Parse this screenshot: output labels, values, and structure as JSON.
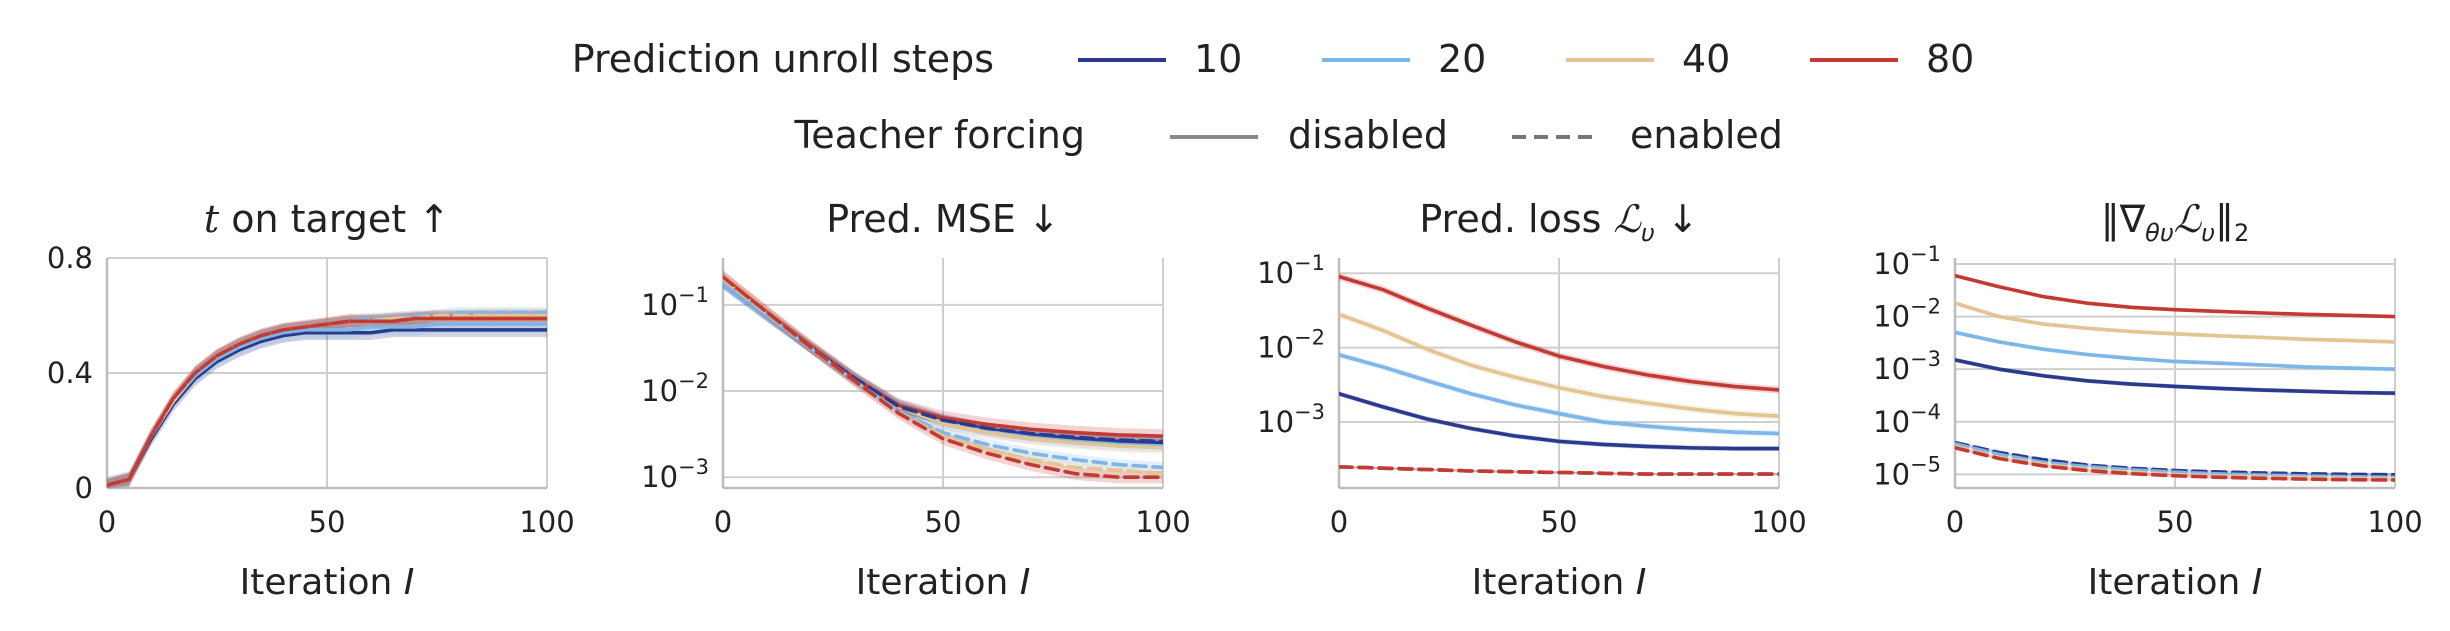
{
  "legend": {
    "steps_title": "Prediction unroll steps",
    "steps": [
      {
        "label": "10",
        "color": "#2b3a8c"
      },
      {
        "label": "20",
        "color": "#7eb6e8"
      },
      {
        "label": "40",
        "color": "#e3c594"
      },
      {
        "label": "80",
        "color": "#c23a33"
      }
    ],
    "tf_title": "Teacher forcing",
    "tf": [
      {
        "label": "disabled",
        "dash": "solid",
        "color": "#888888"
      },
      {
        "label": "enabled",
        "dash": "dashed",
        "color": "#777777"
      }
    ]
  },
  "chart_data": [
    {
      "type": "line",
      "title_parts": {
        "italic": "t",
        "rest": " on target ↑"
      },
      "xlabel_parts": {
        "text": "Iteration ",
        "italic": "I"
      },
      "xlim": [
        0,
        100
      ],
      "xticks": [
        0,
        50,
        100
      ],
      "yscale": "linear",
      "ylim": [
        0,
        0.8
      ],
      "yticks": [
        {
          "v": 0,
          "label": "0"
        },
        {
          "v": 0.4,
          "label": "0.4"
        },
        {
          "v": 0.8,
          "label": "0.8"
        }
      ],
      "grid": true,
      "x": [
        0,
        5,
        10,
        15,
        20,
        25,
        30,
        35,
        40,
        45,
        50,
        55,
        60,
        65,
        70,
        75,
        80,
        85,
        90,
        95,
        100
      ],
      "series": [
        {
          "steps": "10",
          "tf": "disabled",
          "values": [
            0.01,
            0.03,
            0.17,
            0.29,
            0.38,
            0.44,
            0.48,
            0.51,
            0.53,
            0.54,
            0.54,
            0.54,
            0.54,
            0.55,
            0.55,
            0.55,
            0.55,
            0.55,
            0.55,
            0.55,
            0.55
          ],
          "band": 0.025
        },
        {
          "steps": "20",
          "tf": "disabled",
          "values": [
            0.01,
            0.03,
            0.18,
            0.3,
            0.39,
            0.45,
            0.49,
            0.52,
            0.54,
            0.55,
            0.55,
            0.55,
            0.56,
            0.56,
            0.56,
            0.57,
            0.57,
            0.57,
            0.57,
            0.57,
            0.57
          ],
          "band": 0.03
        },
        {
          "steps": "40",
          "tf": "disabled",
          "values": [
            0.01,
            0.03,
            0.18,
            0.3,
            0.4,
            0.46,
            0.5,
            0.53,
            0.55,
            0.56,
            0.57,
            0.58,
            0.58,
            0.59,
            0.59,
            0.59,
            0.59,
            0.6,
            0.6,
            0.6,
            0.6
          ],
          "band": 0.025
        },
        {
          "steps": "80",
          "tf": "disabled",
          "values": [
            0.01,
            0.03,
            0.18,
            0.31,
            0.4,
            0.46,
            0.5,
            0.53,
            0.55,
            0.56,
            0.57,
            0.58,
            0.58,
            0.58,
            0.59,
            0.59,
            0.59,
            0.59,
            0.59,
            0.59,
            0.59
          ],
          "band": 0.025
        },
        {
          "steps": "10",
          "tf": "enabled",
          "values": [
            0.01,
            0.03,
            0.18,
            0.3,
            0.4,
            0.46,
            0.5,
            0.53,
            0.55,
            0.56,
            0.57,
            0.58,
            0.58,
            0.59,
            0.59,
            0.6,
            0.6,
            0.6,
            0.6,
            0.6,
            0.6
          ],
          "band": 0.02
        },
        {
          "steps": "20",
          "tf": "enabled",
          "values": [
            0.01,
            0.03,
            0.18,
            0.3,
            0.4,
            0.46,
            0.5,
            0.53,
            0.55,
            0.56,
            0.57,
            0.58,
            0.59,
            0.59,
            0.6,
            0.6,
            0.61,
            0.61,
            0.61,
            0.61,
            0.61
          ],
          "band": 0.02
        },
        {
          "steps": "40",
          "tf": "enabled",
          "values": [
            0.01,
            0.03,
            0.18,
            0.3,
            0.4,
            0.46,
            0.5,
            0.53,
            0.55,
            0.56,
            0.57,
            0.58,
            0.58,
            0.59,
            0.59,
            0.6,
            0.6,
            0.6,
            0.6,
            0.6,
            0.6
          ],
          "band": 0.02
        },
        {
          "steps": "80",
          "tf": "enabled",
          "values": [
            0.01,
            0.03,
            0.18,
            0.31,
            0.4,
            0.46,
            0.5,
            0.53,
            0.55,
            0.56,
            0.57,
            0.58,
            0.58,
            0.58,
            0.59,
            0.59,
            0.59,
            0.59,
            0.59,
            0.59,
            0.59
          ],
          "band": 0.02
        }
      ]
    },
    {
      "type": "line",
      "title_parts": {
        "text": "Pred. MSE ↓"
      },
      "xlabel_parts": {
        "text": "Iteration ",
        "italic": "I"
      },
      "xlim": [
        0,
        100
      ],
      "xticks": [
        0,
        50,
        100
      ],
      "yscale": "log",
      "ylim": [
        0.00075,
        0.35
      ],
      "yticks": [
        {
          "v": 0.001,
          "base": "10",
          "exp": "−3"
        },
        {
          "v": 0.01,
          "base": "10",
          "exp": "−2"
        },
        {
          "v": 0.1,
          "base": "10",
          "exp": "−1"
        }
      ],
      "grid": true,
      "x": [
        0,
        10,
        20,
        30,
        40,
        50,
        60,
        70,
        80,
        90,
        100
      ],
      "series": [
        {
          "steps": "10",
          "tf": "disabled",
          "values": [
            0.18,
            0.075,
            0.032,
            0.014,
            0.0068,
            0.0046,
            0.0036,
            0.0031,
            0.0028,
            0.0026,
            0.0025
          ],
          "band": 0.18
        },
        {
          "steps": "20",
          "tf": "disabled",
          "values": [
            0.18,
            0.075,
            0.032,
            0.014,
            0.0066,
            0.0043,
            0.0034,
            0.0029,
            0.0026,
            0.0024,
            0.0023
          ],
          "band": 0.18
        },
        {
          "steps": "40",
          "tf": "disabled",
          "values": [
            0.2,
            0.08,
            0.033,
            0.014,
            0.0066,
            0.0042,
            0.0033,
            0.0028,
            0.0025,
            0.0023,
            0.0022
          ],
          "band": 0.18
        },
        {
          "steps": "80",
          "tf": "disabled",
          "values": [
            0.21,
            0.082,
            0.033,
            0.014,
            0.0068,
            0.0049,
            0.0041,
            0.0036,
            0.0033,
            0.0031,
            0.003
          ],
          "band": 0.2
        },
        {
          "steps": "10",
          "tf": "enabled",
          "values": [
            0.18,
            0.075,
            0.032,
            0.014,
            0.0066,
            0.0046,
            0.0037,
            0.0032,
            0.0029,
            0.0027,
            0.0026
          ],
          "band": 0.15
        },
        {
          "steps": "20",
          "tf": "enabled",
          "values": [
            0.18,
            0.075,
            0.031,
            0.013,
            0.0058,
            0.0033,
            0.0024,
            0.0019,
            0.0016,
            0.0014,
            0.0013
          ],
          "band": 0.15
        },
        {
          "steps": "40",
          "tf": "enabled",
          "values": [
            0.2,
            0.08,
            0.032,
            0.013,
            0.0056,
            0.003,
            0.0021,
            0.0016,
            0.0013,
            0.0012,
            0.0011
          ],
          "band": 0.15
        },
        {
          "steps": "80",
          "tf": "enabled",
          "values": [
            0.21,
            0.082,
            0.032,
            0.013,
            0.0055,
            0.0028,
            0.0019,
            0.0014,
            0.0011,
            0.001,
            0.001
          ],
          "band": 0.18
        }
      ]
    },
    {
      "type": "line",
      "title_parts": {
        "text": "Pred. loss ",
        "math": "ℒ",
        "sub": "υ",
        "after": " ↓"
      },
      "xlabel_parts": {
        "text": "Iteration ",
        "italic": "I"
      },
      "xlim": [
        0,
        100
      ],
      "xticks": [
        0,
        50,
        100
      ],
      "yscale": "log",
      "ylim": [
        0.00013,
        0.16
      ],
      "yticks": [
        {
          "v": 0.001,
          "base": "10",
          "exp": "−3"
        },
        {
          "v": 0.01,
          "base": "10",
          "exp": "−2"
        },
        {
          "v": 0.1,
          "base": "10",
          "exp": "−1"
        }
      ],
      "grid": true,
      "x": [
        0,
        10,
        20,
        30,
        40,
        50,
        60,
        70,
        80,
        90,
        100
      ],
      "series": [
        {
          "steps": "10",
          "tf": "disabled",
          "values": [
            0.0024,
            0.0016,
            0.0011,
            0.00082,
            0.00065,
            0.00055,
            0.0005,
            0.00047,
            0.00045,
            0.00044,
            0.00044
          ],
          "band": 0.08
        },
        {
          "steps": "20",
          "tf": "disabled",
          "values": [
            0.008,
            0.0055,
            0.0036,
            0.0024,
            0.0017,
            0.0013,
            0.001,
            0.00088,
            0.00079,
            0.00073,
            0.0007
          ],
          "band": 0.1
        },
        {
          "steps": "40",
          "tf": "disabled",
          "values": [
            0.028,
            0.017,
            0.0095,
            0.0058,
            0.004,
            0.0029,
            0.0022,
            0.0018,
            0.0015,
            0.0013,
            0.0012
          ],
          "band": 0.12
        },
        {
          "steps": "80",
          "tf": "disabled",
          "values": [
            0.09,
            0.06,
            0.034,
            0.02,
            0.012,
            0.0077,
            0.0056,
            0.0043,
            0.0035,
            0.003,
            0.0027
          ],
          "band": 0.12
        },
        {
          "steps": "10",
          "tf": "enabled",
          "values": [
            0.00025,
            0.00024,
            0.00023,
            0.00022,
            0.000215,
            0.00021,
            0.000205,
            0.0002,
            0.0002,
            0.0002,
            0.0002
          ],
          "band": 0.03
        },
        {
          "steps": "20",
          "tf": "enabled",
          "values": [
            0.00025,
            0.00024,
            0.00023,
            0.00022,
            0.000215,
            0.00021,
            0.000205,
            0.0002,
            0.0002,
            0.0002,
            0.0002
          ],
          "band": 0.03
        },
        {
          "steps": "40",
          "tf": "enabled",
          "values": [
            0.00025,
            0.00024,
            0.00023,
            0.00022,
            0.000215,
            0.00021,
            0.000205,
            0.0002,
            0.0002,
            0.0002,
            0.0002
          ],
          "band": 0.03
        },
        {
          "steps": "80",
          "tf": "enabled",
          "values": [
            0.00025,
            0.00024,
            0.00023,
            0.00022,
            0.000215,
            0.00021,
            0.000205,
            0.0002,
            0.0002,
            0.0002,
            0.0002
          ],
          "band": 0.03
        }
      ]
    },
    {
      "type": "line",
      "title_parts": {
        "norm": "‖∇",
        "sub": "θυ",
        "math": "ℒ",
        "sub2": "υ",
        "close": "‖",
        "sub3": "2"
      },
      "xlabel_parts": {
        "text": "Iteration ",
        "italic": "I"
      },
      "xlim": [
        0,
        100
      ],
      "xticks": [
        0,
        50,
        100
      ],
      "yscale": "log",
      "ylim": [
        5.5e-06,
        0.13
      ],
      "yticks": [
        {
          "v": 1e-05,
          "base": "10",
          "exp": "−5"
        },
        {
          "v": 0.0001,
          "base": "10",
          "exp": "−4"
        },
        {
          "v": 0.001,
          "base": "10",
          "exp": "−3"
        },
        {
          "v": 0.01,
          "base": "10",
          "exp": "−2"
        },
        {
          "v": 0.1,
          "base": "10",
          "exp": "−1"
        }
      ],
      "grid": true,
      "x": [
        0,
        10,
        20,
        30,
        40,
        50,
        60,
        70,
        80,
        90,
        100
      ],
      "series": [
        {
          "steps": "10",
          "tf": "disabled",
          "values": [
            0.0015,
            0.001,
            0.00075,
            0.0006,
            0.00052,
            0.00047,
            0.00043,
            0.0004,
            0.00038,
            0.00036,
            0.00035
          ],
          "band": 0.1
        },
        {
          "steps": "20",
          "tf": "disabled",
          "values": [
            0.005,
            0.0033,
            0.0024,
            0.0019,
            0.0016,
            0.0014,
            0.0013,
            0.0012,
            0.0011,
            0.00105,
            0.001
          ],
          "band": 0.1
        },
        {
          "steps": "40",
          "tf": "disabled",
          "values": [
            0.018,
            0.01,
            0.0072,
            0.006,
            0.0052,
            0.0047,
            0.0043,
            0.004,
            0.0037,
            0.0035,
            0.0033
          ],
          "band": 0.1
        },
        {
          "steps": "80",
          "tf": "disabled",
          "values": [
            0.06,
            0.037,
            0.024,
            0.018,
            0.015,
            0.0135,
            0.0125,
            0.0117,
            0.011,
            0.0105,
            0.01
          ],
          "band": 0.08
        },
        {
          "steps": "10",
          "tf": "enabled",
          "values": [
            4e-05,
            2.6e-05,
            1.9e-05,
            1.5e-05,
            1.3e-05,
            1.18e-05,
            1.11e-05,
            1.06e-05,
            1.02e-05,
            1e-05,
            9.8e-06
          ],
          "band": 0.08
        },
        {
          "steps": "20",
          "tf": "enabled",
          "values": [
            3.8e-05,
            2.4e-05,
            1.7e-05,
            1.4e-05,
            1.22e-05,
            1.1e-05,
            1.02e-05,
            9.7e-06,
            9.3e-06,
            9e-06,
            8.8e-06
          ],
          "band": 0.08
        },
        {
          "steps": "40",
          "tf": "enabled",
          "values": [
            3.4e-05,
            2.1e-05,
            1.55e-05,
            1.25e-05,
            1.1e-05,
            9.9e-06,
            9.3e-06,
            8.9e-06,
            8.6e-06,
            8.4e-06,
            8.2e-06
          ],
          "band": 0.08
        },
        {
          "steps": "80",
          "tf": "enabled",
          "values": [
            3.2e-05,
            2e-05,
            1.45e-05,
            1.18e-05,
            1.03e-05,
            9.4e-06,
            8.8e-06,
            8.4e-06,
            8.1e-06,
            7.9e-06,
            7.8e-06
          ],
          "band": 0.08
        }
      ]
    }
  ]
}
